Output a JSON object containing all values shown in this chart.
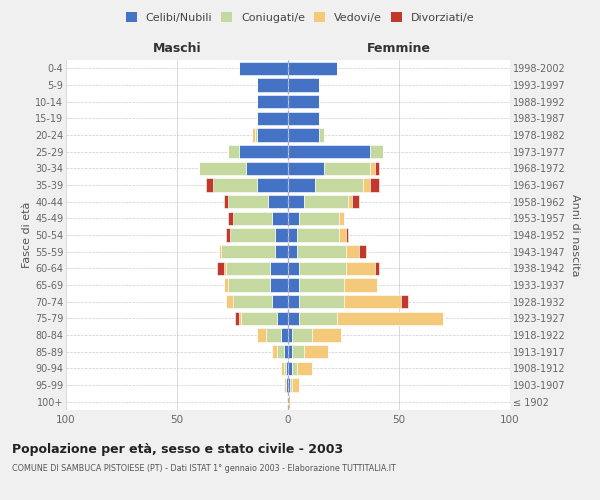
{
  "age_groups": [
    "100+",
    "95-99",
    "90-94",
    "85-89",
    "80-84",
    "75-79",
    "70-74",
    "65-69",
    "60-64",
    "55-59",
    "50-54",
    "45-49",
    "40-44",
    "35-39",
    "30-34",
    "25-29",
    "20-24",
    "15-19",
    "10-14",
    "5-9",
    "0-4"
  ],
  "birth_years": [
    "≤ 1902",
    "1903-1907",
    "1908-1912",
    "1913-1917",
    "1918-1922",
    "1923-1927",
    "1928-1932",
    "1933-1937",
    "1938-1942",
    "1943-1947",
    "1948-1952",
    "1953-1957",
    "1958-1962",
    "1963-1967",
    "1968-1972",
    "1973-1977",
    "1978-1982",
    "1983-1987",
    "1988-1992",
    "1993-1997",
    "1998-2002"
  ],
  "colors": {
    "celibi": "#4472c4",
    "coniugati": "#c5d8a0",
    "vedovi": "#f5c97a",
    "divorziati": "#c0392b"
  },
  "maschi": {
    "celibi": [
      0,
      1,
      1,
      2,
      3,
      5,
      7,
      8,
      8,
      6,
      6,
      7,
      9,
      14,
      19,
      22,
      14,
      14,
      14,
      14,
      22
    ],
    "coniugati": [
      0,
      0,
      1,
      3,
      7,
      16,
      18,
      19,
      20,
      24,
      20,
      18,
      18,
      20,
      21,
      5,
      1,
      0,
      0,
      0,
      0
    ],
    "vedovi": [
      0,
      1,
      1,
      2,
      4,
      1,
      3,
      2,
      1,
      1,
      0,
      0,
      0,
      0,
      0,
      0,
      1,
      0,
      0,
      0,
      0
    ],
    "divorziati": [
      0,
      0,
      0,
      0,
      0,
      2,
      0,
      0,
      3,
      0,
      2,
      2,
      2,
      3,
      0,
      0,
      0,
      0,
      0,
      0,
      0
    ]
  },
  "femmine": {
    "celibi": [
      0,
      1,
      2,
      2,
      2,
      5,
      5,
      5,
      5,
      4,
      4,
      5,
      7,
      12,
      16,
      37,
      14,
      14,
      14,
      14,
      22
    ],
    "coniugati": [
      0,
      1,
      2,
      5,
      9,
      17,
      20,
      20,
      21,
      22,
      19,
      18,
      20,
      22,
      21,
      6,
      2,
      0,
      0,
      0,
      0
    ],
    "vedovi": [
      1,
      3,
      7,
      11,
      13,
      48,
      26,
      15,
      13,
      6,
      3,
      2,
      2,
      3,
      2,
      0,
      0,
      0,
      0,
      0,
      0
    ],
    "divorziati": [
      0,
      0,
      0,
      0,
      0,
      0,
      3,
      0,
      2,
      3,
      1,
      0,
      3,
      4,
      2,
      0,
      0,
      0,
      0,
      0,
      0
    ]
  },
  "xlim": [
    -100,
    100
  ],
  "xticks": [
    -100,
    -50,
    0,
    50,
    100
  ],
  "xticklabels": [
    "100",
    "50",
    "0",
    "50",
    "100"
  ],
  "title": "Popolazione per età, sesso e stato civile - 2003",
  "subtitle": "COMUNE DI SAMBUCA PISTOIESE (PT) - Dati ISTAT 1° gennaio 2003 - Elaborazione TUTTITALIA.IT",
  "ylabel_left": "Fasce di età",
  "ylabel_right": "Anni di nascita",
  "header_maschi": "Maschi",
  "header_femmine": "Femmine",
  "legend_labels": [
    "Celibi/Nubili",
    "Coniugati/e",
    "Vedovi/e",
    "Divorziati/e"
  ],
  "bg_color": "#f0f0f0",
  "plot_bg": "#ffffff",
  "bar_height": 0.8
}
